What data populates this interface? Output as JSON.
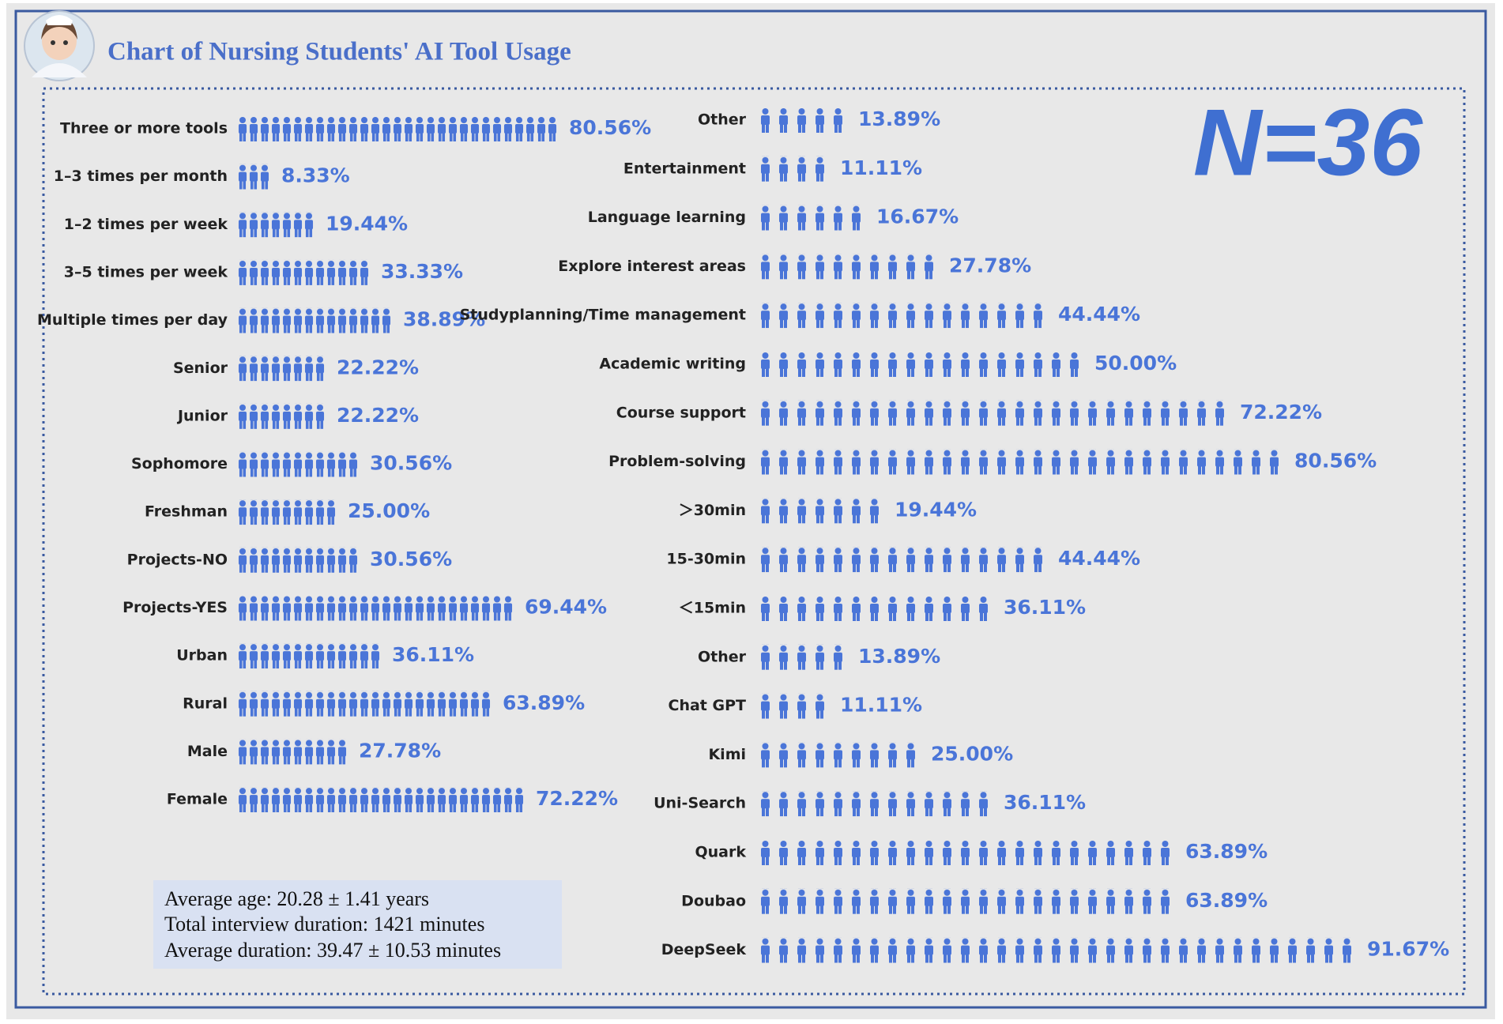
{
  "title": "Chart of Nursing Students' AI Tool Usage",
  "n_label": "N=36",
  "notes": [
    "Average age: 20.28 ± 1.41 years",
    "Total interview duration: 1421 minutes",
    "Average duration: 39.47 ± 10.53 minutes"
  ],
  "chart_data": [
    {
      "type": "pictograph",
      "color": "#4a75d8",
      "categories": [
        "Three or more tools",
        "1–3 times per month",
        "1–2 times per week",
        "3–5 times per week",
        "Multiple times per day",
        "Senior",
        "Junior",
        "Sophomore",
        "Freshman",
        "Projects-NO",
        "Projects-YES",
        "Urban",
        "Rural",
        "Male",
        "Female"
      ],
      "values": [
        80.56,
        8.33,
        19.44,
        33.33,
        38.89,
        22.22,
        22.22,
        30.56,
        25.0,
        30.56,
        69.44,
        36.11,
        63.89,
        27.78,
        72.22
      ],
      "value_labels": [
        "80.56%",
        "8.33%",
        "19.44%",
        "33.33%",
        "38.89%",
        "22.22%",
        "22.22%",
        "30.56%",
        "25.00%",
        "30.56%",
        "69.44%",
        "36.11%",
        "63.89%",
        "27.78%",
        "72.22%"
      ]
    },
    {
      "type": "pictograph",
      "color": "#4a75d8",
      "categories": [
        "Other",
        "Entertainment",
        "Language learning",
        "Explore interest areas",
        "Studyplanning/Time management",
        "Academic writing",
        "Course support",
        "Problem-solving",
        "＞30min",
        "15-30min",
        "＜15min",
        "Other",
        "Chat GPT",
        "Kimi",
        "Uni-Search",
        "Quark",
        "Doubao",
        "DeepSeek"
      ],
      "values": [
        13.89,
        11.11,
        16.67,
        27.78,
        44.44,
        50.0,
        72.22,
        80.56,
        19.44,
        44.44,
        36.11,
        13.89,
        11.11,
        25.0,
        36.11,
        63.89,
        63.89,
        91.67
      ],
      "value_labels": [
        "13.89%",
        "11.11%",
        "16.67%",
        "27.78%",
        "44.44%",
        "50.00%",
        "72.22%",
        "80.56%",
        "19.44%",
        "44.44%",
        "36.11%",
        "13.89%",
        "11.11%",
        "25.00%",
        "36.11%",
        "63.89%",
        "63.89%",
        "91.67%"
      ]
    }
  ]
}
